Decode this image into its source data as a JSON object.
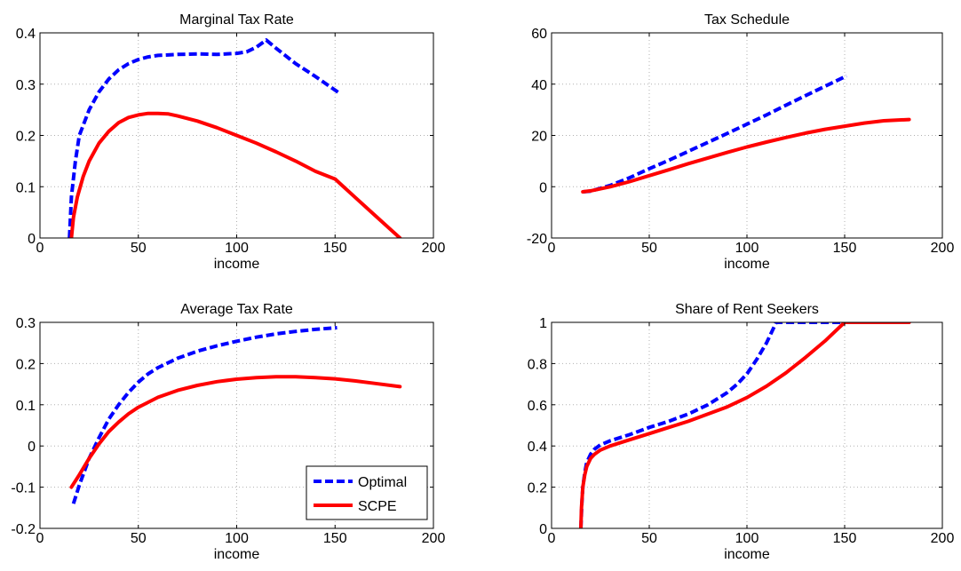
{
  "colors": {
    "optimal": "#0000ff",
    "scpe": "#ff0000",
    "grid": "#b0b0b0"
  },
  "legend": {
    "panel_index": 2,
    "location": "bottom-right",
    "items": [
      {
        "label": "Optimal",
        "series": "optimal"
      },
      {
        "label": "SCPE",
        "series": "scpe"
      }
    ]
  },
  "chart_data": [
    {
      "type": "line",
      "title": "Marginal Tax Rate",
      "xlabel": "income",
      "ylabel": "",
      "xlim": [
        0,
        200
      ],
      "ylim": [
        0,
        0.4
      ],
      "xticks": [
        0,
        50,
        100,
        150,
        200
      ],
      "yticks": [
        0,
        0.1,
        0.2,
        0.3,
        0.4
      ],
      "xtick_labels": [
        "0",
        "50",
        "100",
        "150",
        "200"
      ],
      "ytick_labels": [
        "0",
        "0.1",
        "0.2",
        "0.3",
        "0.4"
      ],
      "grid": true,
      "series": [
        {
          "name": "Optimal",
          "key": "optimal",
          "style": "dashed",
          "x": [
            15,
            16,
            18,
            20,
            25,
            30,
            35,
            40,
            45,
            50,
            55,
            60,
            70,
            80,
            90,
            100,
            105,
            110,
            115,
            120,
            130,
            140,
            152
          ],
          "y": [
            0.0,
            0.08,
            0.15,
            0.2,
            0.25,
            0.285,
            0.31,
            0.328,
            0.34,
            0.348,
            0.353,
            0.356,
            0.358,
            0.359,
            0.358,
            0.36,
            0.363,
            0.372,
            0.386,
            0.37,
            0.34,
            0.315,
            0.283
          ]
        },
        {
          "name": "SCPE",
          "key": "scpe",
          "style": "solid",
          "x": [
            16,
            17,
            19,
            22,
            25,
            30,
            35,
            40,
            45,
            50,
            55,
            60,
            65,
            70,
            80,
            90,
            100,
            110,
            120,
            130,
            140,
            150,
            160,
            170,
            183
          ],
          "y": [
            0.0,
            0.04,
            0.08,
            0.12,
            0.15,
            0.185,
            0.208,
            0.225,
            0.235,
            0.24,
            0.243,
            0.243,
            0.242,
            0.238,
            0.228,
            0.215,
            0.2,
            0.185,
            0.168,
            0.15,
            0.13,
            0.115,
            0.08,
            0.045,
            0.0
          ]
        }
      ]
    },
    {
      "type": "line",
      "title": "Tax Schedule",
      "xlabel": "income",
      "ylabel": "",
      "xlim": [
        0,
        200
      ],
      "ylim": [
        -20,
        60
      ],
      "xticks": [
        0,
        50,
        100,
        150,
        200
      ],
      "yticks": [
        -20,
        0,
        20,
        40,
        60
      ],
      "xtick_labels": [
        "0",
        "50",
        "100",
        "150",
        "200"
      ],
      "ytick_labels": [
        "-20",
        "0",
        "20",
        "40",
        "60"
      ],
      "grid": true,
      "series": [
        {
          "name": "Optimal",
          "key": "optimal",
          "style": "dashed",
          "x": [
            16,
            20,
            30,
            40,
            50,
            60,
            70,
            80,
            90,
            100,
            110,
            120,
            130,
            140,
            151
          ],
          "y": [
            -2.0,
            -1.7,
            0.5,
            3.5,
            7.0,
            10.3,
            13.8,
            17.3,
            20.8,
            24.4,
            28.0,
            31.8,
            35.5,
            39.2,
            43.2
          ]
        },
        {
          "name": "SCPE",
          "key": "scpe",
          "style": "solid",
          "x": [
            16,
            20,
            30,
            40,
            50,
            60,
            70,
            80,
            90,
            100,
            110,
            120,
            130,
            140,
            150,
            160,
            170,
            183
          ],
          "y": [
            -2.0,
            -1.6,
            0.0,
            2.0,
            4.3,
            6.6,
            9.0,
            11.2,
            13.4,
            15.5,
            17.4,
            19.2,
            20.9,
            22.4,
            23.6,
            24.8,
            25.7,
            26.2
          ]
        }
      ]
    },
    {
      "type": "line",
      "title": "Average Tax Rate",
      "xlabel": "income",
      "ylabel": "",
      "xlim": [
        0,
        200
      ],
      "ylim": [
        -0.2,
        0.3
      ],
      "xticks": [
        0,
        50,
        100,
        150,
        200
      ],
      "yticks": [
        -0.2,
        -0.1,
        0,
        0.1,
        0.2,
        0.3
      ],
      "xtick_labels": [
        "0",
        "50",
        "100",
        "150",
        "200"
      ],
      "ytick_labels": [
        "-0.2",
        "-0.1",
        "0",
        "0.1",
        "0.2",
        "0.3"
      ],
      "grid": true,
      "series": [
        {
          "name": "Optimal",
          "key": "optimal",
          "style": "dashed",
          "x": [
            17,
            20,
            25,
            30,
            35,
            40,
            45,
            50,
            55,
            60,
            70,
            80,
            90,
            100,
            110,
            120,
            130,
            140,
            151
          ],
          "y": [
            -0.14,
            -0.095,
            -0.03,
            0.02,
            0.065,
            0.1,
            0.13,
            0.155,
            0.175,
            0.19,
            0.213,
            0.23,
            0.243,
            0.254,
            0.264,
            0.272,
            0.278,
            0.283,
            0.287
          ]
        },
        {
          "name": "SCPE",
          "key": "scpe",
          "style": "solid",
          "x": [
            16,
            20,
            25,
            30,
            35,
            40,
            45,
            50,
            60,
            70,
            80,
            90,
            100,
            110,
            120,
            130,
            140,
            150,
            160,
            170,
            183
          ],
          "y": [
            -0.1,
            -0.07,
            -0.03,
            0.005,
            0.035,
            0.058,
            0.078,
            0.094,
            0.118,
            0.135,
            0.147,
            0.156,
            0.162,
            0.166,
            0.168,
            0.168,
            0.166,
            0.163,
            0.158,
            0.152,
            0.144
          ]
        }
      ]
    },
    {
      "type": "line",
      "title": "Share of Rent Seekers",
      "xlabel": "income",
      "ylabel": "",
      "xlim": [
        0,
        200
      ],
      "ylim": [
        0,
        1
      ],
      "xticks": [
        0,
        50,
        100,
        150,
        200
      ],
      "yticks": [
        0,
        0.2,
        0.4,
        0.6,
        0.8,
        1
      ],
      "xtick_labels": [
        "0",
        "50",
        "100",
        "150",
        "200"
      ],
      "ytick_labels": [
        "0",
        "0.2",
        "0.4",
        "0.6",
        "0.8",
        "1"
      ],
      "grid": true,
      "series": [
        {
          "name": "Optimal",
          "key": "optimal",
          "style": "dashed",
          "x": [
            15,
            15.5,
            16,
            17,
            18,
            20,
            22,
            25,
            30,
            40,
            50,
            60,
            70,
            80,
            90,
            95,
            100,
            105,
            110,
            113,
            115,
            120,
            130,
            140,
            150
          ],
          "y": [
            0.0,
            0.12,
            0.2,
            0.27,
            0.32,
            0.36,
            0.385,
            0.405,
            0.425,
            0.455,
            0.49,
            0.52,
            0.555,
            0.6,
            0.66,
            0.7,
            0.75,
            0.82,
            0.9,
            0.96,
            1.0,
            1.0,
            1.0,
            1.0,
            1.0
          ]
        },
        {
          "name": "SCPE",
          "key": "scpe",
          "style": "solid",
          "x": [
            15,
            15.3,
            16,
            17,
            18,
            20,
            22,
            25,
            30,
            40,
            50,
            60,
            70,
            80,
            90,
            100,
            110,
            120,
            130,
            140,
            145,
            150,
            160,
            170,
            183
          ],
          "y": [
            0.0,
            0.1,
            0.2,
            0.26,
            0.3,
            0.34,
            0.36,
            0.38,
            0.4,
            0.43,
            0.46,
            0.49,
            0.52,
            0.555,
            0.59,
            0.635,
            0.69,
            0.755,
            0.83,
            0.91,
            0.955,
            1.0,
            1.0,
            1.0,
            1.0
          ]
        }
      ]
    }
  ]
}
